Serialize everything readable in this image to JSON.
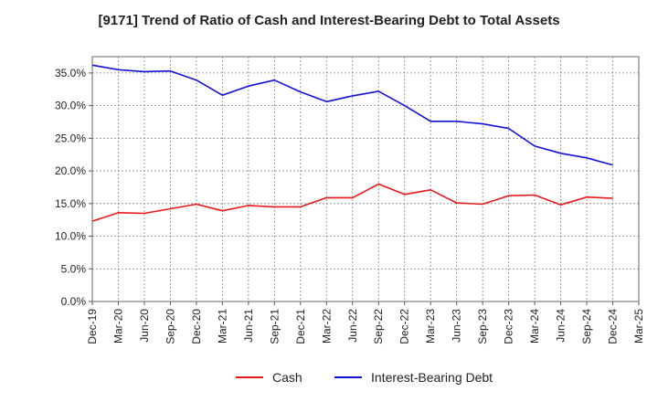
{
  "chart_data": {
    "type": "line",
    "title": "[9171]  Trend of Ratio of Cash and Interest-Bearing Debt to Total Assets",
    "xlabel": "",
    "ylabel": "",
    "x": [
      "Dec-19",
      "Mar-20",
      "Jun-20",
      "Sep-20",
      "Dec-20",
      "Mar-21",
      "Jun-21",
      "Sep-21",
      "Dec-21",
      "Mar-22",
      "Jun-22",
      "Sep-22",
      "Dec-22",
      "Mar-23",
      "Jun-23",
      "Sep-23",
      "Dec-23",
      "Mar-24",
      "Jun-24",
      "Sep-24",
      "Dec-24",
      "Mar-25"
    ],
    "x_tick_labels": [
      "Dec-19",
      "Mar-20",
      "Jun-20",
      "Sep-20",
      "Dec-20",
      "Mar-21",
      "Jun-21",
      "Sep-21",
      "Dec-21",
      "Mar-22",
      "Jun-22",
      "Sep-22",
      "Dec-22",
      "Mar-23",
      "Jun-23",
      "Sep-23",
      "Dec-23",
      "Mar-24",
      "Jun-24",
      "Sep-24",
      "Dec-24",
      "Mar-25"
    ],
    "y_ticks": [
      0,
      5,
      10,
      15,
      20,
      25,
      30,
      35
    ],
    "y_tick_labels": [
      "0.0%",
      "5.0%",
      "10.0%",
      "15.0%",
      "20.0%",
      "25.0%",
      "30.0%",
      "35.0%"
    ],
    "ylim": [
      0,
      37.5
    ],
    "grid": true,
    "legend_position": "bottom-center",
    "series": [
      {
        "name": "Cash",
        "color": "#e8191a",
        "values": [
          12.3,
          13.6,
          13.5,
          14.2,
          14.9,
          13.9,
          14.7,
          14.5,
          14.5,
          15.9,
          15.9,
          18.0,
          16.4,
          17.1,
          15.1,
          14.9,
          16.2,
          16.3,
          14.8,
          16.0,
          15.8,
          null
        ]
      },
      {
        "name": "Interest-Bearing Debt",
        "color": "#1212d9",
        "values": [
          36.2,
          35.5,
          35.2,
          35.3,
          33.9,
          31.6,
          33.0,
          33.9,
          32.1,
          30.6,
          31.5,
          32.2,
          30.0,
          27.6,
          27.6,
          27.2,
          26.5,
          23.8,
          22.7,
          22.0,
          20.9,
          null
        ]
      }
    ]
  }
}
